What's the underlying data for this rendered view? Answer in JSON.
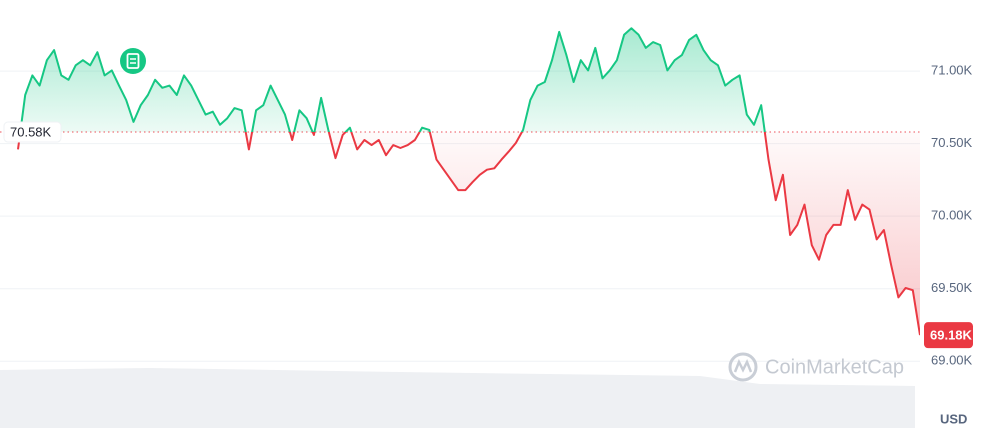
{
  "chart_data": {
    "type": "line",
    "values": [
      70460,
      70835,
      70970,
      70900,
      71075,
      71145,
      70970,
      70940,
      71040,
      71075,
      71040,
      71130,
      70970,
      71005,
      70900,
      70800,
      70650,
      70765,
      70835,
      70940,
      70885,
      70900,
      70835,
      70970,
      70900,
      70800,
      70700,
      70720,
      70630,
      70675,
      70745,
      70730,
      70460,
      70730,
      70765,
      70900,
      70800,
      70700,
      70525,
      70730,
      70675,
      70560,
      70815,
      70595,
      70400,
      70560,
      70610,
      70460,
      70525,
      70490,
      70525,
      70420,
      70490,
      70470,
      70490,
      70525,
      70610,
      70595,
      70390,
      70320,
      70250,
      70180,
      70180,
      70235,
      70285,
      70320,
      70330,
      70390,
      70445,
      70505,
      70595,
      70800,
      70900,
      70925,
      71075,
      71270,
      71110,
      70925,
      71075,
      71005,
      71160,
      70950,
      71005,
      71075,
      71250,
      71295,
      71250,
      71160,
      71200,
      71180,
      71005,
      71075,
      71110,
      71215,
      71250,
      71145,
      71075,
      71040,
      70900,
      70940,
      70970,
      70700,
      70630,
      70765,
      70390,
      70110,
      70285,
      69870,
      69940,
      70080,
      69800,
      69700,
      69870,
      69940,
      69940,
      70180,
      69975,
      70080,
      70045,
      69840,
      69905,
      69665,
      69440,
      69505,
      69490,
      69180
    ],
    "up_color": "#16c784",
    "down_color": "#ea3943",
    "reference": {
      "value": 70580,
      "label": "70.58K"
    },
    "last_price": {
      "value": 69180,
      "label": "69.18K"
    },
    "ylim": [
      68540,
      71490
    ],
    "yticks": [
      {
        "value": 71000,
        "label": "71.00K"
      },
      {
        "value": 70500,
        "label": "70.50K"
      },
      {
        "value": 70000,
        "label": "70.00K"
      },
      {
        "value": 69500,
        "label": "69.50K"
      },
      {
        "value": 69000,
        "label": "69.00K"
      }
    ],
    "grid": true,
    "currency": "USD",
    "watermark": "CoinMarketCap"
  }
}
